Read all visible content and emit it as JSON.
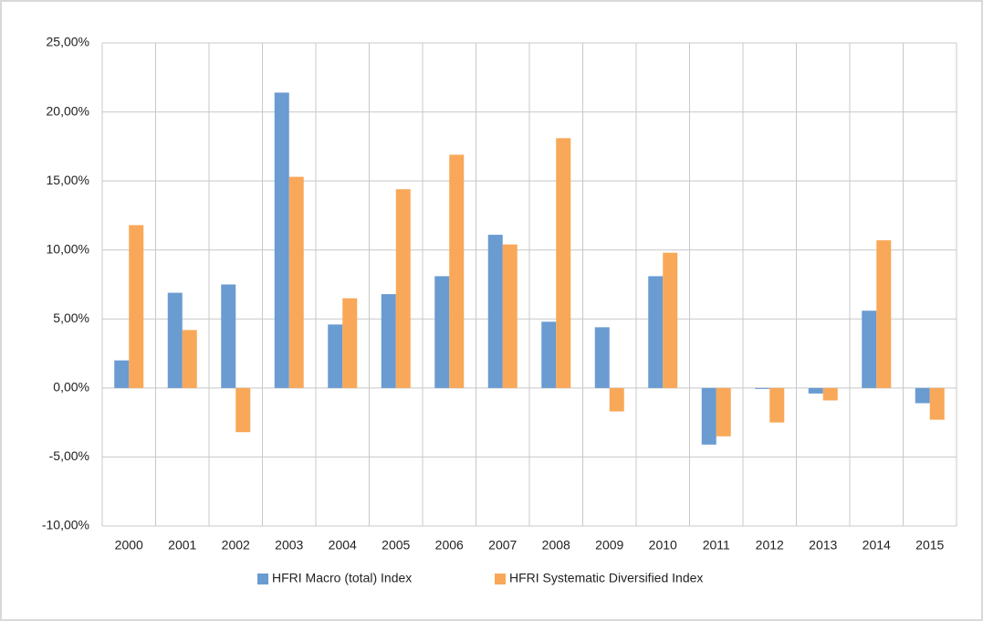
{
  "chart_data": {
    "type": "bar",
    "categories": [
      "2000",
      "2001",
      "2002",
      "2003",
      "2004",
      "2005",
      "2006",
      "2007",
      "2008",
      "2009",
      "2010",
      "2011",
      "2012",
      "2013",
      "2014",
      "2015"
    ],
    "series": [
      {
        "name": "HFRI Macro (total) Index",
        "color": "#6a9bd1",
        "values": [
          2.0,
          6.9,
          7.5,
          21.4,
          4.6,
          6.8,
          8.1,
          11.1,
          4.8,
          4.4,
          8.1,
          -4.1,
          -0.07,
          -0.4,
          5.6,
          -1.1
        ]
      },
      {
        "name": "HFRI Systematic Diversified Index",
        "color": "#f8a858",
        "values": [
          11.8,
          4.2,
          -3.2,
          15.3,
          6.5,
          14.4,
          16.9,
          10.4,
          18.1,
          -1.7,
          9.8,
          -3.5,
          -2.5,
          -0.9,
          10.7,
          -2.3
        ]
      }
    ],
    "ylim": [
      -10,
      25
    ],
    "yticks": [
      {
        "value": -10,
        "label": "-10,00%"
      },
      {
        "value": -5,
        "label": "-5,00%"
      },
      {
        "value": 0,
        "label": "0,00%"
      },
      {
        "value": 5,
        "label": "5,00%"
      },
      {
        "value": 10,
        "label": "10,00%"
      },
      {
        "value": 15,
        "label": "15,00%"
      },
      {
        "value": 20,
        "label": "20,00%"
      },
      {
        "value": 25,
        "label": "25,00%"
      }
    ],
    "grid": true,
    "legend": "bottom"
  }
}
